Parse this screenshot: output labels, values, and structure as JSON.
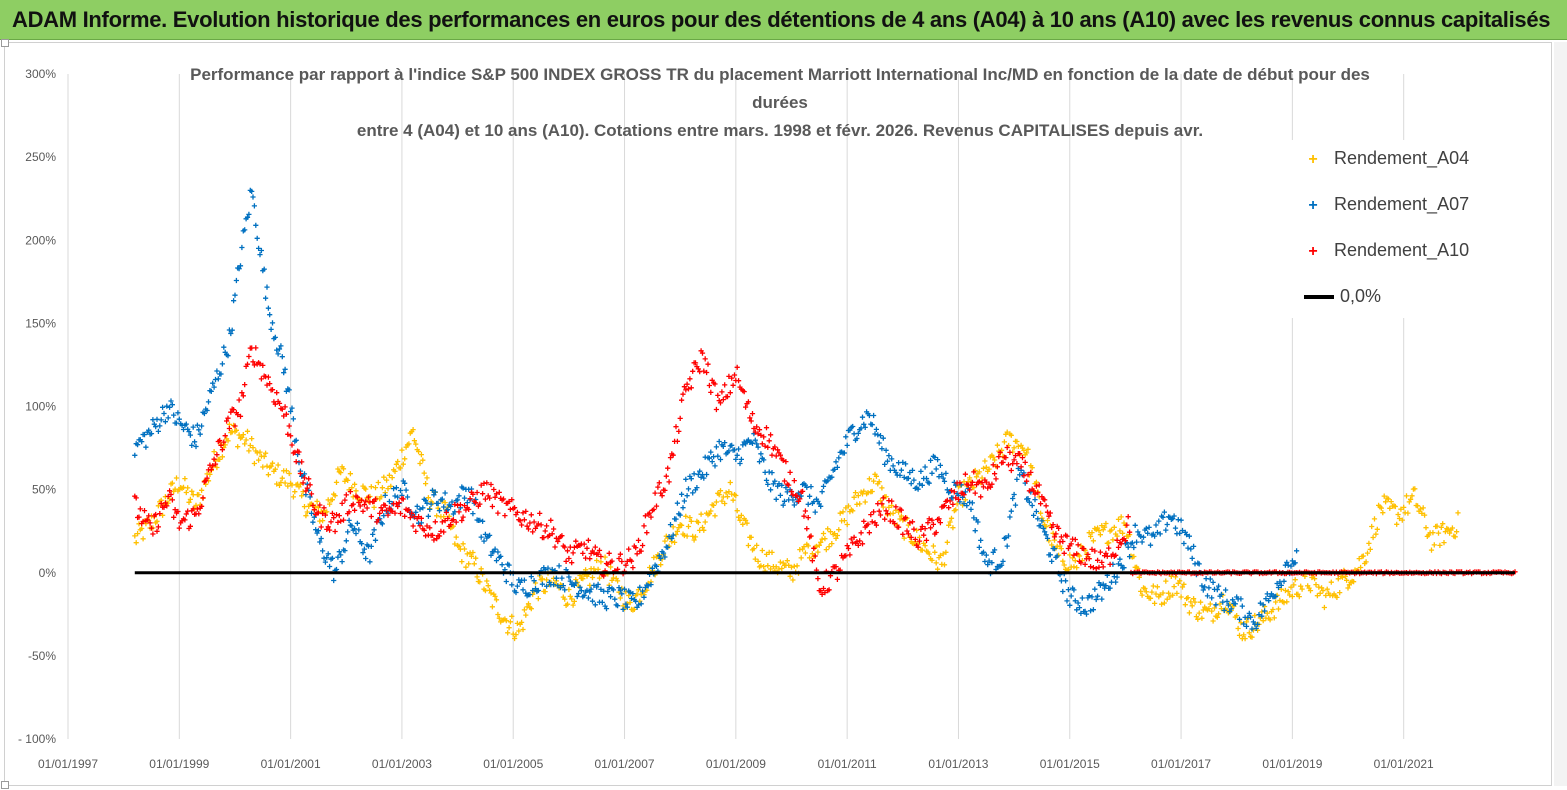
{
  "banner": {
    "title": "ADAM Informe. Evolution historique des performances en euros pour des détentions de 4 ans (A04) à 10 ans (A10) avec les revenus connus capitalisés"
  },
  "colors": {
    "banner_bg": "#8ece63",
    "a04": "#ffc000",
    "a07": "#0070c0",
    "a10": "#ff0000",
    "zero": "#000000",
    "grid": "#d9d9d9"
  },
  "chart_data": {
    "type": "scatter",
    "title_lines": [
      "Performance par rapport à l'indice S&P  500 INDEX GROSS TR  du placement Marriott International Inc/MD en fonction de la date de début pour des",
      "durées",
      "entre 4 (A04) et 10 ans (A10). Cotations entre mars. 1998 et févr. 2026. Revenus CAPITALISES depuis avr."
    ],
    "x_range": [
      1997.0,
      2023.0
    ],
    "ylim": [
      -100,
      300
    ],
    "y_ticks": [
      {
        "value": 300,
        "label": "300%"
      },
      {
        "value": 250,
        "label": "250%"
      },
      {
        "value": 200,
        "label": "200%"
      },
      {
        "value": 150,
        "label": "150%"
      },
      {
        "value": 100,
        "label": "100%"
      },
      {
        "value": 50,
        "label": "50%"
      },
      {
        "value": 0,
        "label": "0%"
      },
      {
        "value": -50,
        "label": "-50%"
      },
      {
        "value": -100,
        "label": "- 100%"
      }
    ],
    "x_ticks": [
      {
        "value": 1997.0,
        "label": "01/01/1997"
      },
      {
        "value": 1999.0,
        "label": "01/01/1999"
      },
      {
        "value": 2001.0,
        "label": "01/01/2001"
      },
      {
        "value": 2003.0,
        "label": "01/01/2003"
      },
      {
        "value": 2005.0,
        "label": "01/01/2005"
      },
      {
        "value": 2007.0,
        "label": "01/01/2007"
      },
      {
        "value": 2009.0,
        "label": "01/01/2009"
      },
      {
        "value": 2011.0,
        "label": "01/01/2011"
      },
      {
        "value": 2013.0,
        "label": "01/01/2013"
      },
      {
        "value": 2015.0,
        "label": "01/01/2015"
      },
      {
        "value": 2017.0,
        "label": "01/01/2017"
      },
      {
        "value": 2019.0,
        "label": "01/01/2019"
      },
      {
        "value": 2021.0,
        "label": "01/01/2021"
      }
    ],
    "grid": "vertical",
    "legend_position": "top-right",
    "series": [
      {
        "name": "Rendement_A04",
        "color": "#ffc000",
        "x": [
          1998.2,
          1998.5,
          1998.8,
          1999.0,
          1999.3,
          1999.6,
          1999.9,
          2000.2,
          2000.4,
          2000.7,
          2001.0,
          2001.3,
          2001.6,
          2001.9,
          2002.2,
          2002.5,
          2002.8,
          2003.0,
          2003.2,
          2003.5,
          2003.8,
          2004.0,
          2004.3,
          2004.6,
          2004.9,
          2005.1,
          2005.4,
          2005.7,
          2006.0,
          2006.3,
          2006.6,
          2006.9,
          2007.1,
          2007.4,
          2007.7,
          2008.0,
          2008.3,
          2008.6,
          2008.9,
          2009.1,
          2009.4,
          2009.7,
          2010.0,
          2010.3,
          2010.6,
          2010.9,
          2011.2,
          2011.5,
          2011.8,
          2012.1,
          2012.4,
          2012.7,
          2013.0,
          2013.3,
          2013.6,
          2013.9,
          2014.2,
          2014.5,
          2014.8,
          2015.1,
          2015.4,
          2015.7,
          2016.0,
          2016.3,
          2016.6,
          2016.9,
          2017.2,
          2017.5,
          2017.8,
          2018.1,
          2018.4,
          2018.7,
          2019.0,
          2019.3,
          2019.6,
          2019.9,
          2020.1,
          2020.3,
          2020.6,
          2020.9,
          2021.2,
          2021.5,
          2021.8,
          2022.0
        ],
        "y": [
          20,
          30,
          45,
          55,
          40,
          65,
          85,
          80,
          70,
          60,
          55,
          40,
          35,
          60,
          50,
          45,
          55,
          70,
          85,
          45,
          35,
          15,
          5,
          -15,
          -30,
          -35,
          -10,
          -5,
          -15,
          -5,
          5,
          -10,
          -20,
          -5,
          15,
          30,
          25,
          40,
          50,
          30,
          10,
          5,
          0,
          15,
          20,
          30,
          45,
          55,
          35,
          25,
          15,
          5,
          45,
          55,
          65,
          80,
          75,
          35,
          10,
          5,
          20,
          25,
          30,
          -10,
          -15,
          -5,
          -20,
          -25,
          -15,
          -35,
          -30,
          -20,
          -10,
          -5,
          -15,
          -5,
          0,
          10,
          40,
          35,
          45,
          20,
          25,
          30
        ]
      },
      {
        "name": "Rendement_A07",
        "color": "#0070c0",
        "x": [
          1998.2,
          1998.5,
          1998.8,
          1999.0,
          1999.3,
          1999.6,
          1999.9,
          2000.1,
          2000.3,
          2000.6,
          2000.9,
          2001.2,
          2001.5,
          2001.8,
          2002.1,
          2002.4,
          2002.7,
          2003.0,
          2003.3,
          2003.6,
          2003.9,
          2004.2,
          2004.5,
          2004.8,
          2005.1,
          2005.4,
          2005.7,
          2006.0,
          2006.3,
          2006.6,
          2006.9,
          2007.2,
          2007.5,
          2007.8,
          2008.1,
          2008.4,
          2008.7,
          2009.0,
          2009.3,
          2009.6,
          2009.9,
          2010.2,
          2010.5,
          2010.8,
          2011.1,
          2011.4,
          2011.7,
          2012.0,
          2012.3,
          2012.6,
          2012.9,
          2013.2,
          2013.5,
          2013.8,
          2014.1,
          2014.4,
          2014.7,
          2015.0,
          2015.3,
          2015.6,
          2015.9,
          2016.2,
          2016.5,
          2016.8,
          2017.1,
          2017.4,
          2017.7,
          2018.0,
          2018.3,
          2018.6,
          2018.9,
          2019.1
        ],
        "y": [
          75,
          85,
          100,
          90,
          80,
          110,
          140,
          190,
          230,
          160,
          120,
          60,
          20,
          0,
          30,
          10,
          40,
          50,
          35,
          45,
          40,
          50,
          20,
          5,
          -10,
          -5,
          0,
          -5,
          -10,
          -15,
          -15,
          -20,
          0,
          20,
          50,
          60,
          75,
          70,
          80,
          55,
          45,
          50,
          40,
          65,
          85,
          95,
          70,
          60,
          55,
          65,
          50,
          45,
          5,
          10,
          60,
          35,
          10,
          -15,
          -20,
          -10,
          5,
          25,
          20,
          35,
          20,
          -5,
          -15,
          -20,
          -30,
          -15,
          5,
          10
        ]
      },
      {
        "name": "Rendement_A10",
        "color": "#ff0000",
        "x": [
          1998.2,
          1998.5,
          1998.8,
          1999.0,
          1999.3,
          1999.6,
          1999.9,
          2000.1,
          2000.3,
          2000.6,
          2000.9,
          2001.2,
          2001.5,
          2001.8,
          2002.1,
          2002.4,
          2002.7,
          2003.0,
          2003.3,
          2003.6,
          2003.9,
          2004.2,
          2004.5,
          2004.8,
          2005.1,
          2005.4,
          2005.7,
          2006.0,
          2006.3,
          2006.6,
          2006.9,
          2007.2,
          2007.5,
          2007.8,
          2008.1,
          2008.4,
          2008.7,
          2009.0,
          2009.3,
          2009.6,
          2009.9,
          2010.2,
          2010.5,
          2010.8,
          2011.1,
          2011.4,
          2011.7,
          2012.0,
          2012.3,
          2012.6,
          2012.9,
          2013.2,
          2013.5,
          2013.8,
          2014.1,
          2014.4,
          2014.7,
          2015.0,
          2015.3,
          2015.6,
          2015.9,
          2016.1
        ],
        "y": [
          40,
          25,
          45,
          30,
          35,
          65,
          90,
          100,
          135,
          115,
          95,
          60,
          35,
          30,
          45,
          40,
          35,
          40,
          30,
          25,
          35,
          40,
          50,
          40,
          35,
          30,
          25,
          10,
          15,
          5,
          5,
          10,
          40,
          60,
          110,
          130,
          100,
          120,
          90,
          80,
          60,
          45,
          -10,
          0,
          15,
          30,
          40,
          30,
          20,
          30,
          45,
          55,
          50,
          70,
          65,
          50,
          25,
          15,
          10,
          5,
          20,
          30
        ]
      }
    ],
    "tail_series": [
      {
        "name": "Rendement_A10",
        "color": "#ff0000",
        "x_start": 2016.1,
        "x_end": 2023.0,
        "y": 0
      }
    ],
    "zero_line": {
      "name": "0,0%",
      "y": 0,
      "x_start": 1998.2,
      "x_end": 2023.0,
      "color": "#000000"
    },
    "legend": [
      "Rendement_A04",
      "Rendement_A07",
      "Rendement_A10",
      "0,0%"
    ]
  }
}
